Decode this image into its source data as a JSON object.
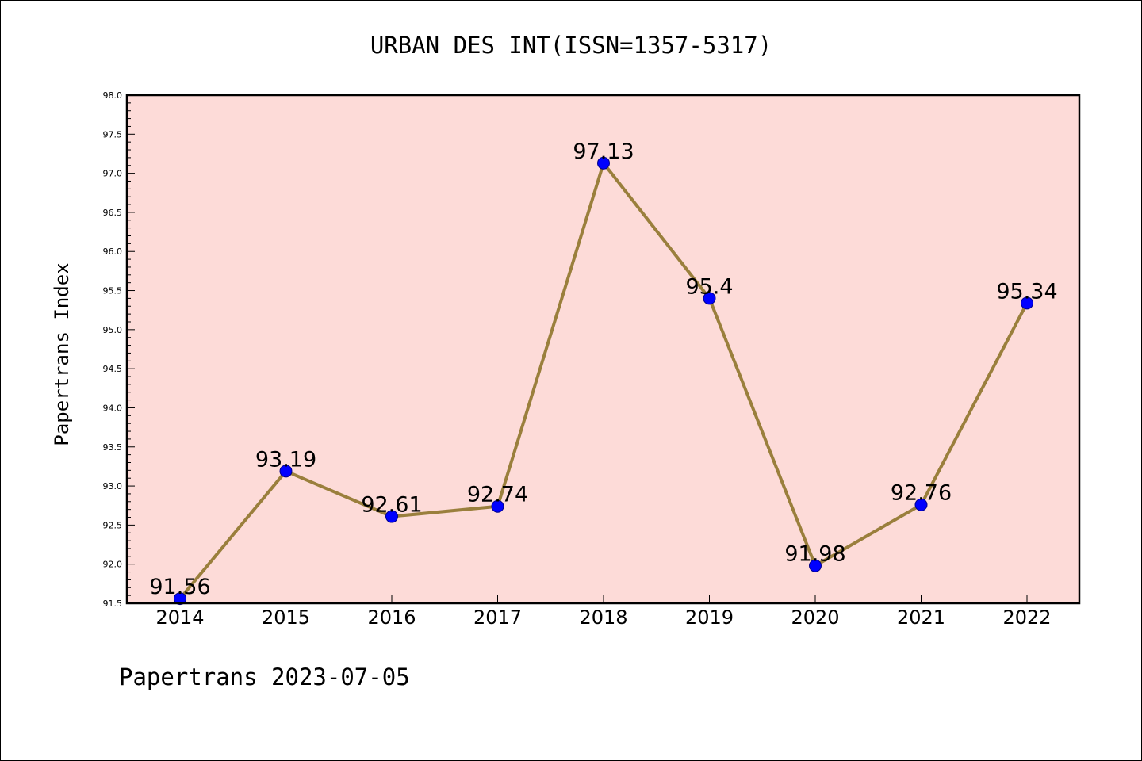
{
  "chart_data": {
    "type": "line",
    "title": "URBAN DES INT(ISSN=1357-5317)",
    "xlabel": "",
    "ylabel": "Papertrans Index",
    "categories": [
      "2014",
      "2015",
      "2016",
      "2017",
      "2018",
      "2019",
      "2020",
      "2021",
      "2022"
    ],
    "series": [
      {
        "name": "Papertrans Index",
        "values": [
          91.56,
          93.19,
          92.61,
          92.74,
          97.13,
          95.4,
          91.98,
          92.76,
          95.34
        ],
        "labels": [
          "91.56",
          "93.19",
          "92.61",
          "92.74",
          "97.13",
          "95.4",
          "91.98",
          "92.76",
          "95.34"
        ]
      }
    ],
    "ylim": [
      91.5,
      98.0
    ],
    "y_major_step": 0.5,
    "y_minor_step": 0.1,
    "y_ticks": [
      "91.5",
      "92.0",
      "92.5",
      "93.0",
      "93.5",
      "94.0",
      "94.5",
      "95.0",
      "95.5",
      "96.0",
      "96.5",
      "97.0",
      "97.5",
      "98.0"
    ],
    "grid": false,
    "footer": "Papertrans 2023-07-05"
  },
  "colors": {
    "plot_background": "#fddbd8",
    "line": "#9a7f3c",
    "marker": "#0000ff",
    "marker_edge": "#00008b",
    "text": "#000000"
  }
}
